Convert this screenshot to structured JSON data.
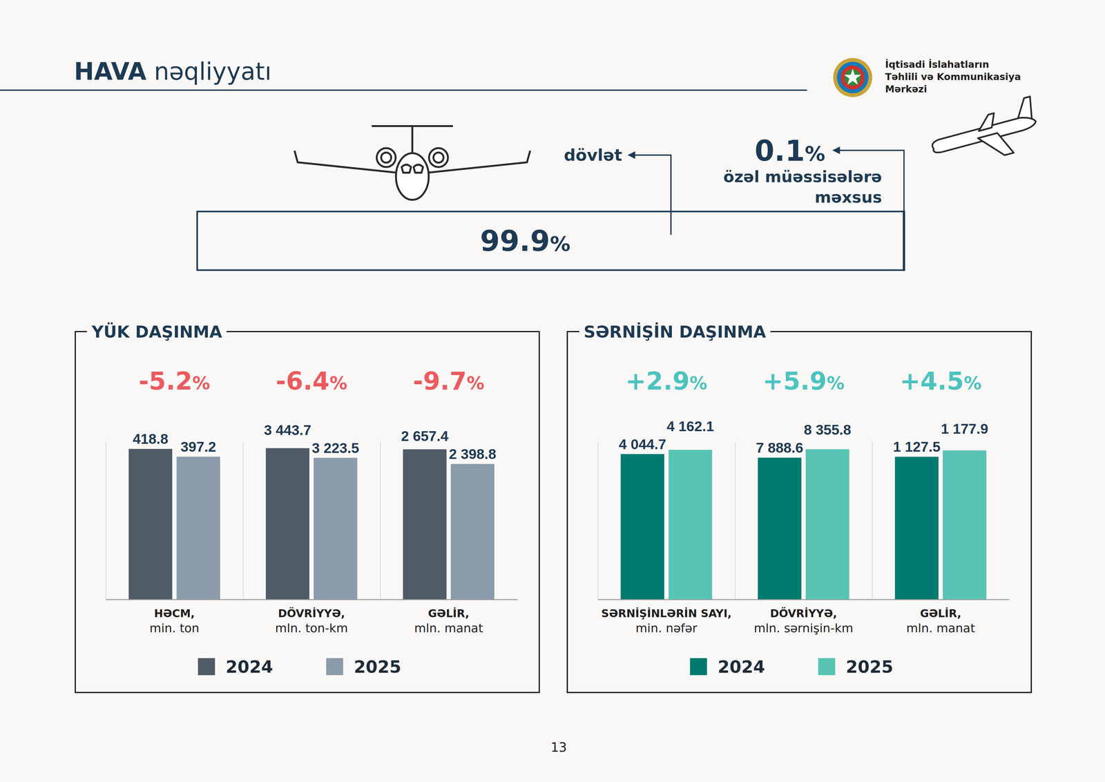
{
  "header": {
    "title": "HAVA nəqliyyatı",
    "organization": [
      "İqtisadi İslahatların",
      "Təhlili və Kommunikasiya",
      "Mərkəzi"
    ]
  },
  "ownership": {
    "segments": [
      {
        "label": "dövlət",
        "value": 99.9,
        "value_label": "99.9%"
      },
      {
        "label": "özəl müəssisələrə məxsus",
        "value": 0.1,
        "value_label": "0.1%"
      }
    ]
  },
  "panels": [
    {
      "title": "YÜK DAŞINMA"
    },
    {
      "title": "SƏRNİŞİN DAŞINMA"
    }
  ],
  "chart_data": [
    {
      "type": "bar",
      "title": "-5.2%",
      "categories": [
        "HƏCM, min. ton"
      ],
      "series": [
        {
          "name": "2024",
          "color": "#4f5b66",
          "values": [
            418.8
          ]
        },
        {
          "name": "2025",
          "color": "#8b9bab",
          "values": [
            397.2
          ]
        }
      ],
      "ylim": [
        0,
        440
      ],
      "yticks": [
        0
      ],
      "data_labels": true,
      "tick_labels": "x",
      "legend": "bottom"
    },
    {
      "type": "bar",
      "title": "-6.4%",
      "categories": [
        "DÖVRİYYƏ, mln. ton-km"
      ],
      "series": [
        {
          "color": "#4f5b66",
          "values": [
            3443.7
          ],
          "value_labels": [
            "3 443.7"
          ]
        },
        {
          "color": "#8b9bab",
          "values": [
            3223.5
          ],
          "value_labels": [
            "3 223.5"
          ]
        }
      ],
      "ylim": [
        0,
        3600
      ],
      "yticks": [
        0
      ],
      "data_labels": true,
      "tick_labels": "x"
    },
    {
      "type": "bar",
      "title": "-9.7%",
      "categories": [
        "GƏLİR, mln. manat"
      ],
      "series": [
        {
          "color": "#4f5b66",
          "values": [
            2657.4
          ],
          "value_labels": [
            "2 657.4"
          ]
        },
        {
          "color": "#8b9bab",
          "values": [
            2398.8
          ],
          "value_labels": [
            "2 398.8"
          ]
        }
      ],
      "ylim": [
        0,
        2800
      ],
      "yticks": [
        0
      ],
      "data_labels": true,
      "tick_labels": "x"
    },
    {
      "type": "bar",
      "title": "+2.9%",
      "categories": [
        "SƏRNİŞİNLƏRİN SAYI, min. nəfər"
      ],
      "series": [
        {
          "name": "2024",
          "color": "#007a6e",
          "values": [
            4044.7
          ],
          "value_labels": [
            "4 044.7"
          ]
        },
        {
          "name": "2025",
          "color": "#57c4b4",
          "values": [
            4162.1
          ],
          "value_labels": [
            "4 162.1"
          ]
        }
      ],
      "ylim": [
        0,
        4400
      ],
      "yticks": [
        0
      ],
      "data_labels": true,
      "tick_labels": "x",
      "legend": "bottom"
    },
    {
      "type": "bar",
      "title": "+5.9%",
      "categories": [
        "DÖVRİYYƏ, mln. sərnişin-km"
      ],
      "series": [
        {
          "color": "#007a6e",
          "values": [
            7888.6
          ],
          "value_labels": [
            "7 888.6"
          ]
        },
        {
          "color": "#57c4b4",
          "values": [
            8355.8
          ],
          "value_labels": [
            "8 355.8"
          ]
        }
      ],
      "ylim": [
        0,
        8800
      ],
      "yticks": [
        0
      ],
      "data_labels": true,
      "tick_labels": "x"
    },
    {
      "type": "bar",
      "title": "+4.5%",
      "categories": [
        "GƏLİR, mln. manat"
      ],
      "series": [
        {
          "color": "#007a6e",
          "values": [
            1127.5
          ],
          "value_labels": [
            "1 127.5"
          ]
        },
        {
          "color": "#57c4b4",
          "values": [
            1177.9
          ],
          "value_labels": [
            "1 177.9"
          ]
        }
      ],
      "ylim": [
        0,
        1250
      ],
      "yticks": [
        0
      ],
      "data_labels": true,
      "tick_labels": "x"
    }
  ],
  "page_number": "13"
}
